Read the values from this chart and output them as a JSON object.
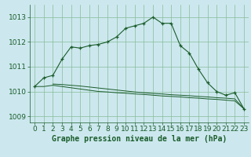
{
  "title": "Graphe pression niveau de la mer (hPa)",
  "bg_color": "#cce8ee",
  "grid_color": "#88bb99",
  "line_color": "#1a5c2a",
  "xlim": [
    -0.5,
    23.5
  ],
  "ylim": [
    1008.75,
    1013.5
  ],
  "yticks": [
    1009,
    1010,
    1011,
    1012,
    1013
  ],
  "xticks": [
    0,
    1,
    2,
    3,
    4,
    5,
    6,
    7,
    8,
    9,
    10,
    11,
    12,
    13,
    14,
    15,
    16,
    17,
    18,
    19,
    20,
    21,
    22,
    23
  ],
  "series1_x": [
    0,
    1,
    2,
    3,
    4,
    5,
    6,
    7,
    8,
    9,
    10,
    11,
    12,
    13,
    14,
    15,
    16,
    17,
    18,
    19,
    20,
    21,
    22,
    23
  ],
  "series1_y": [
    1010.2,
    1010.55,
    1010.65,
    1011.3,
    1011.8,
    1011.75,
    1011.85,
    1011.9,
    1012.0,
    1012.2,
    1012.55,
    1012.65,
    1012.75,
    1013.0,
    1012.75,
    1012.75,
    1011.85,
    1011.55,
    1010.9,
    1010.35,
    1010.0,
    1009.85,
    1009.95,
    1009.3
  ],
  "series2_x": [
    0,
    1,
    2,
    3,
    4,
    5,
    6,
    7,
    8,
    9,
    10,
    11,
    12,
    13,
    14,
    15,
    16,
    17,
    18,
    19,
    20,
    21,
    22,
    23
  ],
  "series2_y": [
    1010.2,
    1010.2,
    1010.25,
    1010.2,
    1010.15,
    1010.1,
    1010.05,
    1010.0,
    1009.98,
    1009.95,
    1009.93,
    1009.9,
    1009.88,
    1009.85,
    1009.82,
    1009.8,
    1009.78,
    1009.75,
    1009.73,
    1009.7,
    1009.68,
    1009.65,
    1009.62,
    1009.3
  ],
  "series3_x": [
    2,
    3,
    4,
    5,
    6,
    7,
    8,
    9,
    10,
    11,
    12,
    13,
    14,
    15,
    16,
    17,
    18,
    19,
    20,
    21,
    22,
    23
  ],
  "series3_y": [
    1010.3,
    1010.28,
    1010.25,
    1010.22,
    1010.18,
    1010.14,
    1010.1,
    1010.06,
    1010.02,
    1009.98,
    1009.95,
    1009.92,
    1009.9,
    1009.87,
    1009.85,
    1009.83,
    1009.8,
    1009.78,
    1009.75,
    1009.73,
    1009.7,
    1009.3
  ],
  "tick_fontsize": 6.5,
  "label_fontsize": 7.0
}
